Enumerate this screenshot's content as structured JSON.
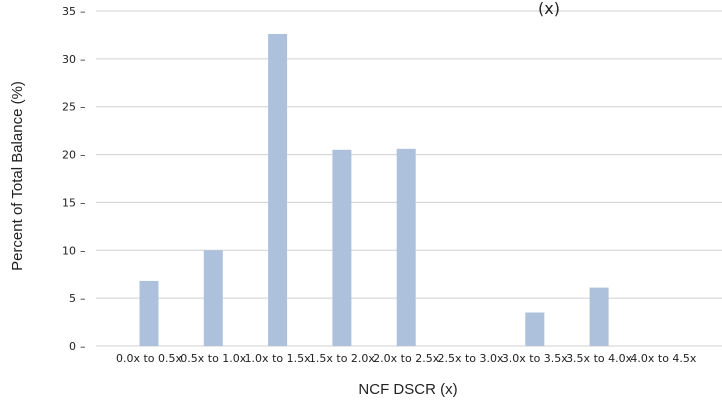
{
  "chart_data": {
    "type": "bar",
    "title_fragment": "(x)",
    "xlabel": "NCF DSCR (x)",
    "ylabel": "Percent of Total Balance (%)",
    "categories": [
      "0.0x to 0.5x",
      "0.5x to 1.0x",
      "1.0x to 1.5x",
      "1.5x to 2.0x",
      "2.0x to 2.5x",
      "2.5x to 3.0x",
      "3.0x to 3.5x",
      "3.5x to 4.0x",
      "4.0x to 4.5x"
    ],
    "values": [
      6.8,
      10.0,
      32.6,
      20.5,
      20.6,
      0,
      3.5,
      6.1,
      0
    ],
    "ylim": [
      0,
      35
    ],
    "yticks": [
      0,
      5,
      10,
      15,
      20,
      25,
      30,
      35
    ],
    "grid": "horizontal",
    "bar_color": "#adc0dc",
    "grid_color": "#d0d0d0"
  }
}
